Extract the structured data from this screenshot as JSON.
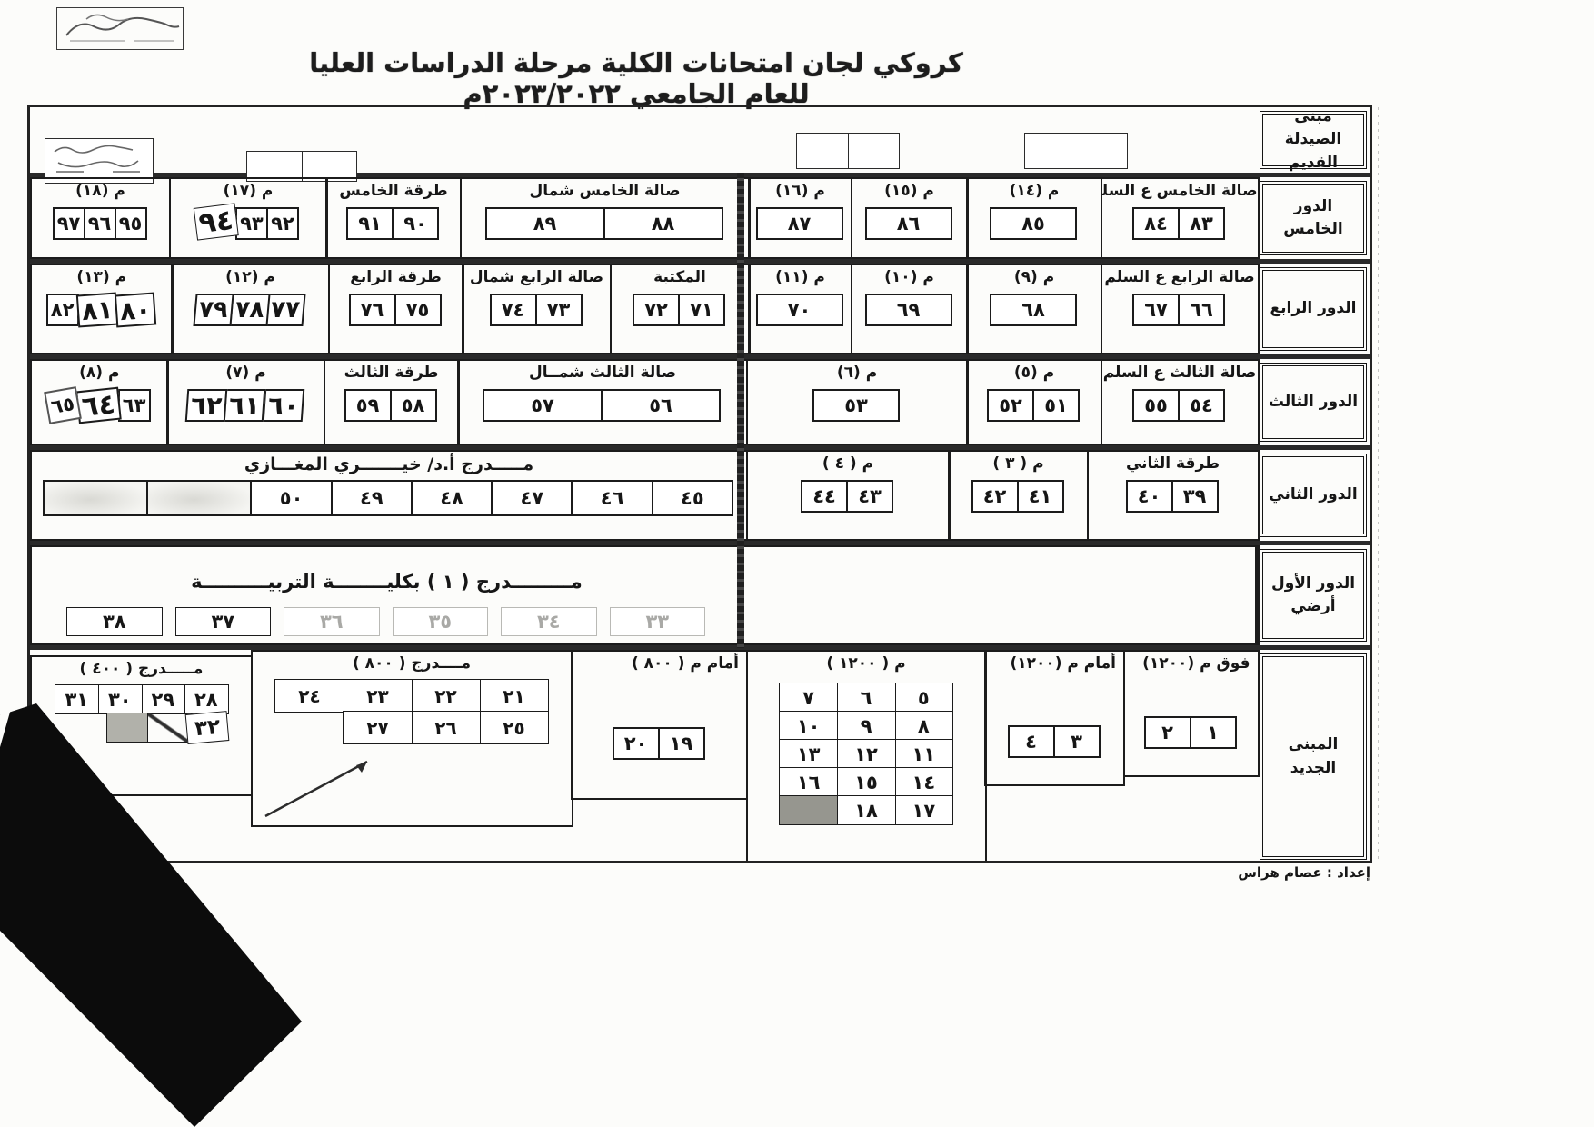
{
  "page": {
    "title": "كروكي لجان امتحانات الكلية مرحلة الدراسات العليا  للعام الجامعي ٢٠٢٣/٢٠٢٢م",
    "prepared_by": "إعداد : عصام هراس"
  },
  "floor_labels": {
    "building": "مبنى الصيدلة القديم",
    "fifth": "الدور الخامس",
    "fourth": "الدور الرابع",
    "third": "الدور الثالث",
    "second": "الدور الثاني",
    "first": "الدور الأول أرضي",
    "new_building": "المبنى الجديد"
  },
  "fifth": {
    "hall_stairs": {
      "label": "صالة الخامس ع السلم",
      "seats": [
        "٨٣",
        "٨٤"
      ]
    },
    "m14": {
      "label": "م (١٤)",
      "seats": [
        "٨٥"
      ]
    },
    "m15": {
      "label": "م (١٥)",
      "seats": [
        "٨٦"
      ]
    },
    "m16": {
      "label": "م (١٦)",
      "seats": [
        "٨٧"
      ]
    },
    "hall_north": {
      "label": "صالة الخامس شمال",
      "seats": [
        "٨٨",
        "٨٩"
      ]
    },
    "corridor": {
      "label": "طرقة الخامس",
      "seats": [
        "٩٠",
        "٩١"
      ]
    },
    "m17": {
      "label": "م (١٧)",
      "seats": [
        "٩٢",
        "٩٣",
        "٩٤"
      ]
    },
    "m18": {
      "label": "م (١٨)",
      "seats": [
        "٩٥",
        "٩٦",
        "٩٧"
      ]
    }
  },
  "fourth": {
    "hall_stairs": {
      "label": "صالة الرابع ع السلم",
      "seats": [
        "٦٦",
        "٦٧"
      ]
    },
    "m9": {
      "label": "م (٩)",
      "seats": [
        "٦٨"
      ]
    },
    "m10": {
      "label": "م (١٠)",
      "seats": [
        "٦٩"
      ]
    },
    "m11": {
      "label": "م (١١)",
      "seats": [
        "٧٠"
      ]
    },
    "library": {
      "label": "المكتبة",
      "seats": [
        "٧١",
        "٧٢"
      ]
    },
    "hall_north": {
      "label": "صالة الرابع شمال",
      "seats": [
        "٧٣",
        "٧٤"
      ]
    },
    "corridor": {
      "label": "طرقة الرابع",
      "seats": [
        "٧٥",
        "٧٦"
      ]
    },
    "m12": {
      "label": "م (١٢)",
      "seats": [
        "٧٧",
        "٧٨",
        "٧٩"
      ]
    },
    "m13": {
      "label": "م (١٣)",
      "seats": [
        "٨٠",
        "٨١",
        "٨٢"
      ]
    }
  },
  "third": {
    "hall_stairs": {
      "label": "صالة الثالث ع السلم",
      "seats": [
        "٥٤",
        "٥٥"
      ]
    },
    "m5": {
      "label": "م (٥)",
      "seats": [
        "٥١",
        "٥٢"
      ]
    },
    "m6": {
      "label": "م (٦)",
      "seats": [
        "٥٣"
      ]
    },
    "hall_north": {
      "label": "صالة الثالث شمــال",
      "seats": [
        "٥٦",
        "٥٧"
      ]
    },
    "corridor": {
      "label": "طرقة الثالث",
      "seats": [
        "٥٨",
        "٥٩"
      ]
    },
    "m7": {
      "label": "م (٧)",
      "seats": [
        "٦٠",
        "٦١",
        "٦٢"
      ]
    },
    "m8": {
      "label": "م (٨)",
      "seats": [
        "٦٣",
        "٦٤",
        "٦٥"
      ]
    }
  },
  "second": {
    "corridor": {
      "label": "طرقة الثاني",
      "seats": [
        "٣٩",
        "٤٠"
      ]
    },
    "m3": {
      "label": "م ( ٣ )",
      "seats": [
        "٤١",
        "٤٢"
      ]
    },
    "m4": {
      "label": "م ( ٤ )",
      "seats": [
        "٤٣",
        "٤٤"
      ]
    },
    "auditorium": {
      "label": "مـــــدرج أ.د/ خيـــــــري المغـــازي",
      "seats": [
        "٤٥",
        "٤٦",
        "٤٧",
        "٤٨",
        "٤٩",
        "٥٠",
        "",
        ""
      ]
    }
  },
  "first": {
    "auditorium": {
      "label": "مـــــــــدرج ( ١ ) بكليــــــــة التربيــــــــــة",
      "seats": [
        "٣٣",
        "٣٤",
        "٣٥",
        "٣٦",
        "٣٧",
        "٣٨"
      ]
    }
  },
  "new_building": {
    "above_1200": {
      "label": "فوق م (١٢٠٠)",
      "seats": [
        "١",
        "٢"
      ]
    },
    "front_1200": {
      "label": "أمام م (١٢٠٠)",
      "seats": [
        "٣",
        "٤"
      ]
    },
    "m1200": {
      "label": "م ( ١٢٠٠ )",
      "grid": [
        [
          "٥",
          "٦",
          "٧"
        ],
        [
          "٨",
          "٩",
          "١٠"
        ],
        [
          "١١",
          "١٢",
          "١٣"
        ],
        [
          "١٤",
          "١٥",
          "١٦"
        ],
        [
          "١٧",
          "١٨",
          ""
        ]
      ]
    },
    "front_800": {
      "label": "أمام م ( ٨٠٠ )",
      "seats": [
        "١٩",
        "٢٠"
      ]
    },
    "aud_800": {
      "label": "مــــدرج ( ٨٠٠ )",
      "rows": [
        [
          "٢١",
          "٢٢",
          "٢٣",
          "٢٤"
        ],
        [
          "٢٥",
          "٢٦",
          "٢٧"
        ]
      ]
    },
    "aud_400": {
      "label": "مـــــدرج ( ٤٠٠ )",
      "rows": [
        [
          "٢٨",
          "٢٩",
          "٣٠",
          "٣١"
        ],
        [
          "٣٢",
          "",
          ""
        ]
      ]
    }
  }
}
